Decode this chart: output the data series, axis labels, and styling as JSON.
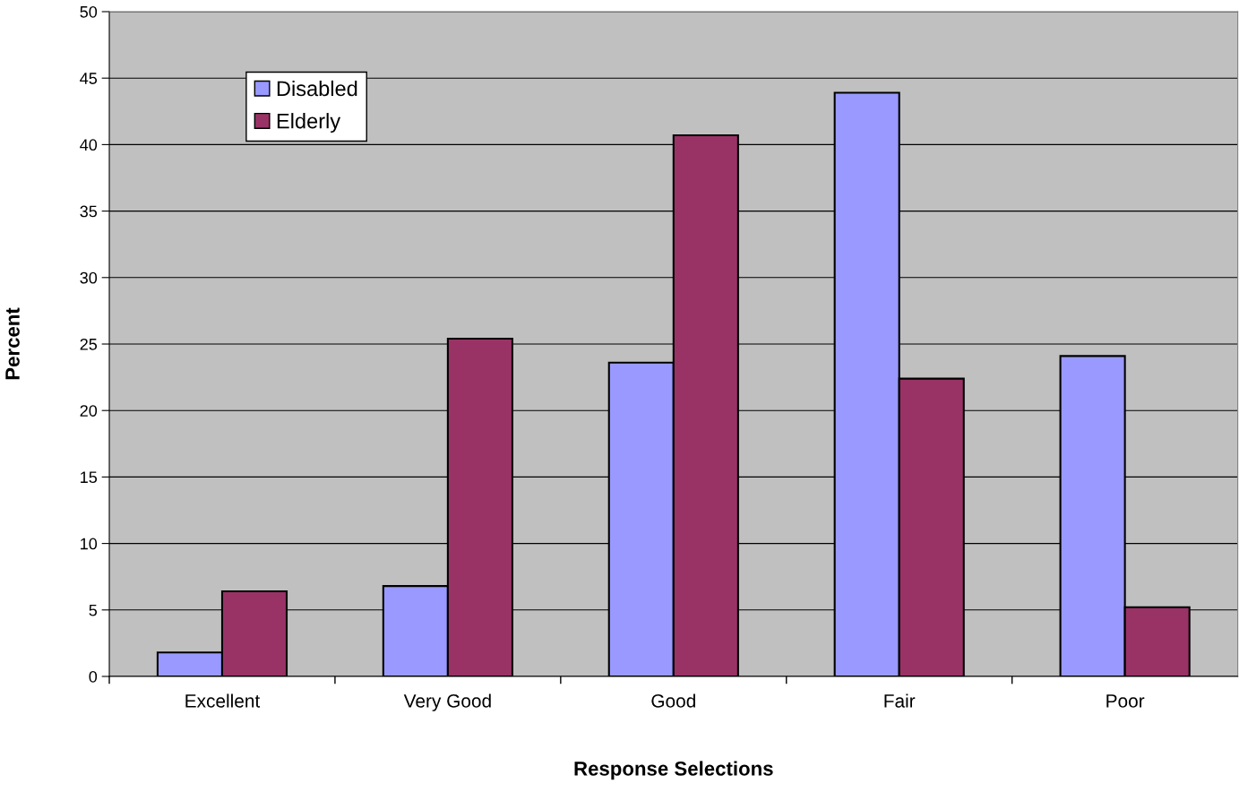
{
  "chart_data": {
    "type": "bar",
    "xlabel": "Response Selections",
    "ylabel": "Percent",
    "categories": [
      "Excellent",
      "Very Good",
      "Good",
      "Fair",
      "Poor"
    ],
    "series": [
      {
        "name": "Disabled",
        "color": "#9999ff",
        "values": [
          1.8,
          6.8,
          23.6,
          43.9,
          24.1
        ]
      },
      {
        "name": "Elderly",
        "color": "#993366",
        "values": [
          6.4,
          25.4,
          40.7,
          22.4,
          5.2
        ]
      }
    ],
    "ylim": [
      0,
      50
    ],
    "yticks": [
      0,
      5,
      10,
      15,
      20,
      25,
      30,
      35,
      40,
      45,
      50
    ],
    "grid": "y",
    "legend": "top left"
  }
}
